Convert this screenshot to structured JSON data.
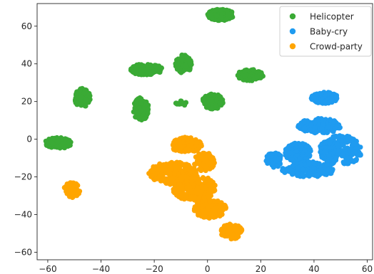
{
  "chart_data": {
    "type": "scatter",
    "title": "",
    "xlabel": "",
    "ylabel": "",
    "xlim": [
      -64,
      62
    ],
    "ylim": [
      -64,
      72
    ],
    "xticks": [
      -60,
      -40,
      -20,
      0,
      20,
      40,
      60
    ],
    "yticks": [
      -60,
      -40,
      -20,
      0,
      20,
      40,
      60
    ],
    "xtick_labels": [
      "−60",
      "−40",
      "−20",
      "0",
      "20",
      "40",
      "60"
    ],
    "ytick_labels": [
      "−60",
      "−40",
      "−20",
      "0",
      "20",
      "40",
      "60"
    ],
    "grid": false,
    "legend_position": "top-right",
    "series": [
      {
        "name": "Helicopter",
        "color": "#3aaa35",
        "clusters": [
          {
            "cx": 5,
            "cy": 66,
            "rx": 5,
            "ry": 3,
            "n": 140
          },
          {
            "cx": -23,
            "cy": 37,
            "rx": 6,
            "ry": 3,
            "n": 130
          },
          {
            "cx": -9,
            "cy": 40,
            "rx": 3,
            "ry": 5,
            "n": 110
          },
          {
            "cx": 16,
            "cy": 34,
            "rx": 5,
            "ry": 3,
            "n": 120
          },
          {
            "cx": -47,
            "cy": 22,
            "rx": 3,
            "ry": 5,
            "n": 110
          },
          {
            "cx": -25,
            "cy": 16,
            "rx": 3,
            "ry": 6,
            "n": 120
          },
          {
            "cx": 2,
            "cy": 20,
            "rx": 4,
            "ry": 4,
            "n": 140
          },
          {
            "cx": -10,
            "cy": 19,
            "rx": 2,
            "ry": 1.5,
            "n": 12
          },
          {
            "cx": -56,
            "cy": -2,
            "rx": 5,
            "ry": 3,
            "n": 120
          }
        ]
      },
      {
        "name": "Baby-cry",
        "color": "#1f9bf0",
        "clusters": [
          {
            "cx": 44,
            "cy": 22,
            "rx": 5,
            "ry": 3,
            "n": 110
          },
          {
            "cx": 42,
            "cy": 7,
            "rx": 8,
            "ry": 4,
            "n": 150
          },
          {
            "cx": 50,
            "cy": -6,
            "rx": 8,
            "ry": 8,
            "n": 220
          },
          {
            "cx": 34,
            "cy": -7,
            "rx": 5,
            "ry": 5,
            "n": 160
          },
          {
            "cx": 38,
            "cy": -16,
            "rx": 10,
            "ry": 4,
            "n": 160
          },
          {
            "cx": 25,
            "cy": -11,
            "rx": 3,
            "ry": 4,
            "n": 60
          }
        ]
      },
      {
        "name": "Crowd-party",
        "color": "#ffa500",
        "clusters": [
          {
            "cx": -8,
            "cy": -3,
            "rx": 6,
            "ry": 4,
            "n": 130
          },
          {
            "cx": -13,
            "cy": -18,
            "rx": 9,
            "ry": 6,
            "n": 220
          },
          {
            "cx": -5,
            "cy": -26,
            "rx": 8,
            "ry": 7,
            "n": 260
          },
          {
            "cx": 1,
            "cy": -37,
            "rx": 6,
            "ry": 5,
            "n": 160
          },
          {
            "cx": -1,
            "cy": -12,
            "rx": 4,
            "ry": 5,
            "n": 90
          },
          {
            "cx": 9,
            "cy": -49,
            "rx": 4,
            "ry": 4,
            "n": 110
          },
          {
            "cx": -51,
            "cy": -27,
            "rx": 3,
            "ry": 4,
            "n": 90
          }
        ]
      }
    ]
  }
}
